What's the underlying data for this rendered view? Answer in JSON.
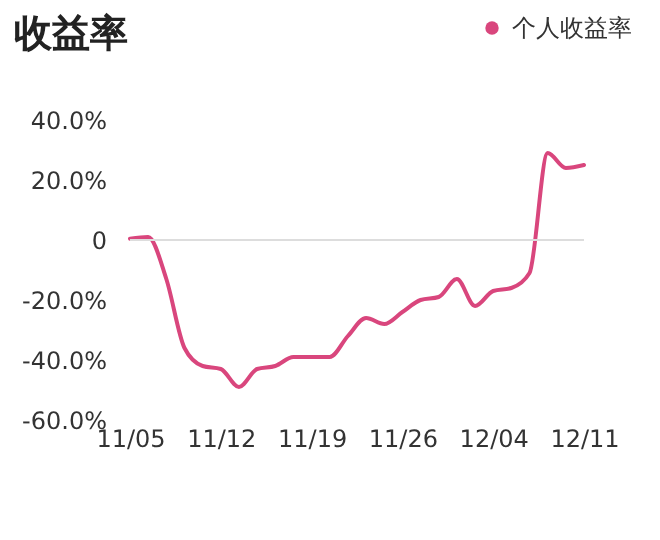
{
  "chart_data": {
    "type": "line",
    "title": "收益率",
    "categories": [
      "11/05",
      null,
      null,
      null,
      null,
      "11/12",
      null,
      null,
      null,
      null,
      "11/19",
      null,
      null,
      null,
      null,
      "11/26",
      null,
      null,
      null,
      null,
      "12/04",
      null,
      null,
      null,
      null,
      "12/11"
    ],
    "series": [
      {
        "name": "个人收益率",
        "color": "#d9467d",
        "values": [
          0.4,
          1,
          -13,
          -36,
          -42,
          -43,
          -49,
          -43,
          -42,
          -39,
          -39,
          -39,
          -32,
          -26,
          -28,
          -24,
          -20,
          -19,
          -13,
          -22,
          -17,
          -16,
          -11,
          29,
          24,
          25
        ]
      }
    ],
    "ylim": [
      -60,
      40
    ],
    "yticks": [
      {
        "value": -60,
        "label": "-60.0%"
      },
      {
        "value": -40,
        "label": "-40.0%"
      },
      {
        "value": -20,
        "label": "-20.0%"
      },
      {
        "value": 0,
        "label": "0"
      },
      {
        "value": 20,
        "label": "20.0%"
      },
      {
        "value": 40,
        "label": "40.0%"
      }
    ],
    "ref_lines": [
      {
        "axis": "y",
        "value": 0,
        "color": "#dddddd"
      }
    ],
    "legend": "top right",
    "marker": "none",
    "line_style": "solid"
  }
}
